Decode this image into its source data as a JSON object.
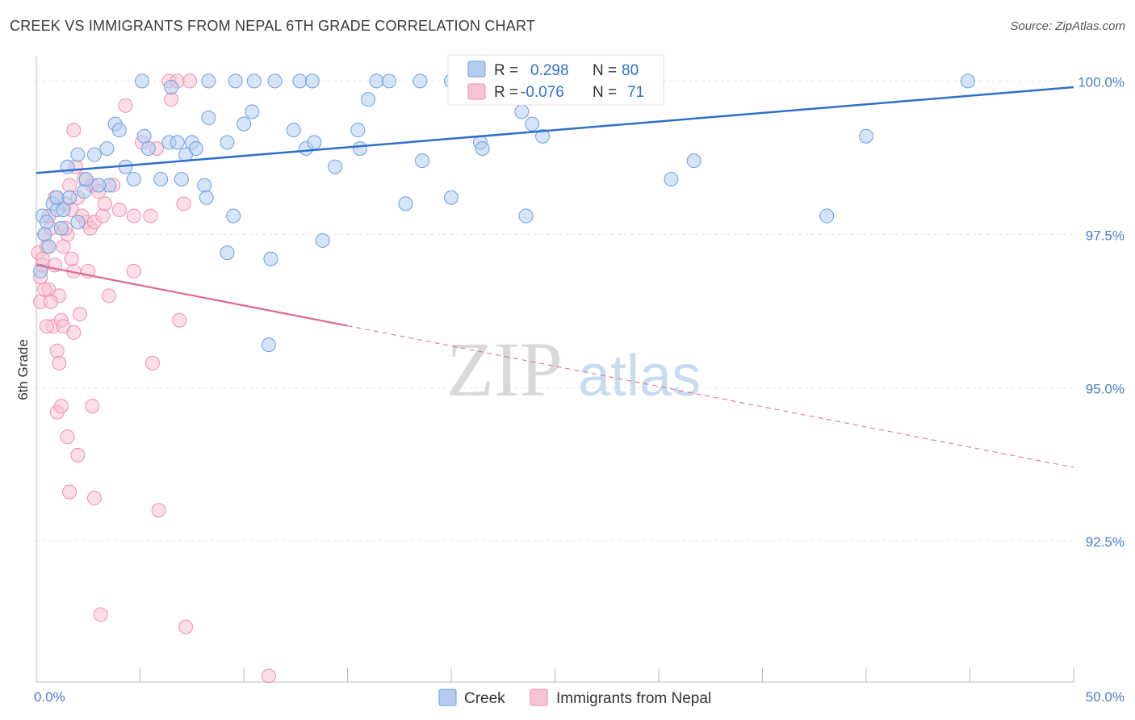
{
  "title": "CREEK VS IMMIGRANTS FROM NEPAL 6TH GRADE CORRELATION CHART",
  "source": "Source: ZipAtlas.com",
  "watermark": {
    "zip": "ZIP",
    "atlas": "atlas"
  },
  "colors": {
    "creek_fill": "#b3cdf0",
    "creek_stroke": "#6e9fe0",
    "creek_line": "#2f6fca",
    "nepal_fill": "#f8c3d2",
    "nepal_stroke": "#ee8fad",
    "nepal_line": "#e0678f",
    "tick": "#4a7cc9",
    "grid": "#e2e2e2"
  },
  "legend_box": {
    "rows": [
      {
        "r_label": "R =",
        "r_value": "0.298",
        "n_label": "N =",
        "n_value": "80"
      },
      {
        "r_label": "R =",
        "r_value": "-0.076",
        "n_label": "N =",
        "n_value": "71"
      }
    ]
  },
  "bottom_legend": [
    "Creek",
    "Immigrants from Nepal"
  ],
  "chart_data": {
    "type": "scatter",
    "title": "CREEK VS IMMIGRANTS FROM NEPAL 6TH GRADE CORRELATION CHART",
    "xlabel": "",
    "ylabel": "6th Grade",
    "xlim": [
      0,
      50
    ],
    "ylim": [
      90.2,
      100.4
    ],
    "x_tick_labels": [
      "0.0%",
      "50.0%"
    ],
    "y_ticks": [
      92.5,
      95.0,
      97.5,
      100.0
    ],
    "y_tick_labels": [
      "92.5%",
      "95.0%",
      "97.5%",
      "100.0%"
    ],
    "grid": true,
    "legend_position": "top-center",
    "series": [
      {
        "name": "Creek",
        "r": 0.298,
        "n": 80,
        "trend": {
          "x": [
            0,
            50
          ],
          "y": [
            98.5,
            99.9
          ],
          "dashed_from": null
        },
        "points": [
          [
            0.3,
            97.8
          ],
          [
            0.5,
            97.7
          ],
          [
            0.8,
            98.0
          ],
          [
            1.0,
            97.9
          ],
          [
            1.2,
            97.6
          ],
          [
            1.0,
            98.1
          ],
          [
            1.5,
            98.6
          ],
          [
            1.6,
            98.1
          ],
          [
            2.0,
            98.8
          ],
          [
            2.3,
            98.2
          ],
          [
            2.4,
            98.4
          ],
          [
            2.8,
            98.8
          ],
          [
            2.0,
            97.7
          ],
          [
            3.4,
            98.9
          ],
          [
            3.5,
            98.3
          ],
          [
            3.8,
            99.3
          ],
          [
            4.3,
            98.6
          ],
          [
            4.7,
            98.4
          ],
          [
            5.2,
            99.1
          ],
          [
            5.4,
            98.9
          ],
          [
            4.0,
            99.2
          ],
          [
            6.0,
            98.4
          ],
          [
            6.4,
            99.0
          ],
          [
            6.5,
            99.9
          ],
          [
            6.8,
            99.0
          ],
          [
            7.0,
            98.4
          ],
          [
            7.2,
            98.8
          ],
          [
            7.5,
            99.0
          ],
          [
            7.7,
            98.9
          ],
          [
            8.1,
            98.3
          ],
          [
            8.2,
            98.1
          ],
          [
            9.2,
            99.0
          ],
          [
            8.3,
            99.4
          ],
          [
            9.5,
            97.8
          ],
          [
            9.2,
            97.2
          ],
          [
            10.0,
            99.3
          ],
          [
            10.4,
            99.5
          ],
          [
            11.3,
            97.1
          ],
          [
            11.2,
            95.7
          ],
          [
            12.4,
            99.2
          ],
          [
            13.0,
            98.9
          ],
          [
            13.4,
            99.0
          ],
          [
            13.8,
            97.4
          ],
          [
            14.4,
            98.6
          ],
          [
            15.5,
            99.2
          ],
          [
            15.6,
            98.9
          ],
          [
            16.0,
            99.7
          ],
          [
            17.8,
            98.0
          ],
          [
            18.6,
            98.7
          ],
          [
            20.0,
            98.1
          ],
          [
            21.4,
            99.0
          ],
          [
            21.5,
            98.9
          ],
          [
            23.4,
            99.5
          ],
          [
            23.9,
            99.3
          ],
          [
            24.4,
            99.1
          ],
          [
            23.6,
            97.8
          ],
          [
            30.6,
            98.4
          ],
          [
            31.7,
            98.7
          ],
          [
            38.1,
            97.8
          ],
          [
            40.0,
            99.1
          ],
          [
            44.9,
            100.0
          ],
          [
            5.1,
            100.0
          ],
          [
            8.3,
            100.0
          ],
          [
            9.6,
            100.0
          ],
          [
            10.5,
            100.0
          ],
          [
            11.5,
            100.0
          ],
          [
            12.7,
            100.0
          ],
          [
            13.3,
            100.0
          ],
          [
            16.4,
            100.0
          ],
          [
            17.0,
            100.0
          ],
          [
            18.5,
            100.0
          ],
          [
            20.0,
            100.0
          ],
          [
            20.9,
            100.0
          ],
          [
            23.7,
            100.0
          ],
          [
            24.0,
            100.0
          ],
          [
            25.2,
            100.0
          ],
          [
            0.2,
            96.9
          ],
          [
            0.4,
            97.5
          ],
          [
            0.6,
            97.3
          ],
          [
            1.3,
            97.9
          ],
          [
            3.0,
            98.3
          ]
        ]
      },
      {
        "name": "Immigrants from Nepal",
        "r": -0.076,
        "n": 71,
        "trend": {
          "x": [
            0,
            50
          ],
          "y": [
            97.0,
            93.7
          ],
          "dashed_from": 15
        },
        "points": [
          [
            0.1,
            97.2
          ],
          [
            0.2,
            96.8
          ],
          [
            0.2,
            96.4
          ],
          [
            0.3,
            97.0
          ],
          [
            0.4,
            97.5
          ],
          [
            0.5,
            97.3
          ],
          [
            0.6,
            96.6
          ],
          [
            0.7,
            97.6
          ],
          [
            0.8,
            96.0
          ],
          [
            0.9,
            98.1
          ],
          [
            1.0,
            95.6
          ],
          [
            1.1,
            95.4
          ],
          [
            1.2,
            96.1
          ],
          [
            1.3,
            97.3
          ],
          [
            1.4,
            98.0
          ],
          [
            1.5,
            97.5
          ],
          [
            1.6,
            98.3
          ],
          [
            1.7,
            97.9
          ],
          [
            1.8,
            96.9
          ],
          [
            1.9,
            98.6
          ],
          [
            2.0,
            98.1
          ],
          [
            2.2,
            97.8
          ],
          [
            2.3,
            98.4
          ],
          [
            2.4,
            97.7
          ],
          [
            2.5,
            96.9
          ],
          [
            2.6,
            97.6
          ],
          [
            2.7,
            98.3
          ],
          [
            2.8,
            97.7
          ],
          [
            3.2,
            97.8
          ],
          [
            3.3,
            98.0
          ],
          [
            3.5,
            96.5
          ],
          [
            3.7,
            98.3
          ],
          [
            4.3,
            99.6
          ],
          [
            4.7,
            97.8
          ],
          [
            4.7,
            96.9
          ],
          [
            5.1,
            99.0
          ],
          [
            5.5,
            97.8
          ],
          [
            5.6,
            95.4
          ],
          [
            5.8,
            98.9
          ],
          [
            6.4,
            100.0
          ],
          [
            6.5,
            99.7
          ],
          [
            6.8,
            100.0
          ],
          [
            6.9,
            96.1
          ],
          [
            7.1,
            98.0
          ],
          [
            7.4,
            100.0
          ],
          [
            1.8,
            99.2
          ],
          [
            1.0,
            94.6
          ],
          [
            1.2,
            94.7
          ],
          [
            1.5,
            94.2
          ],
          [
            2.0,
            93.9
          ],
          [
            1.6,
            93.3
          ],
          [
            2.7,
            94.7
          ],
          [
            2.8,
            93.2
          ],
          [
            5.9,
            93.0
          ],
          [
            3.1,
            91.3
          ],
          [
            7.2,
            91.1
          ],
          [
            11.2,
            90.3
          ],
          [
            0.5,
            96.0
          ],
          [
            1.3,
            96.0
          ],
          [
            1.8,
            95.9
          ],
          [
            0.3,
            97.1
          ],
          [
            0.6,
            97.8
          ],
          [
            0.9,
            97.0
          ],
          [
            1.1,
            96.5
          ],
          [
            2.1,
            96.2
          ],
          [
            1.4,
            97.6
          ],
          [
            0.4,
            96.6
          ],
          [
            1.7,
            97.1
          ],
          [
            3.0,
            98.2
          ],
          [
            4.0,
            97.9
          ],
          [
            0.7,
            96.4
          ]
        ]
      }
    ]
  }
}
